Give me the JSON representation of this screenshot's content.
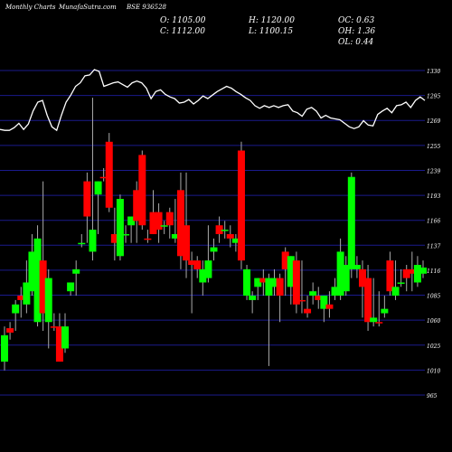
{
  "header": {
    "title": "Monthly Charts",
    "site": "MunafaSutra.com",
    "symbol": "BSE 936528"
  },
  "ohlc": {
    "open": "O: 1105.00",
    "high": "H: 1120.00",
    "oc": "OC: 0.63",
    "close": "C: 1112.00",
    "low": "L: 1100.15",
    "oh": "OH: 1.36",
    "ol": "OL: 0.44"
  },
  "colors": {
    "up": "#00ff00",
    "down": "#ff0000",
    "grid": "#1a1a8c",
    "wick": "#aaaaaa",
    "line": "#ffffff"
  },
  "chart_data": {
    "type": "candlestick",
    "title": "",
    "xlabel": "",
    "ylabel": "",
    "ylim": [
      967,
      1336
    ],
    "y_ticks": [
      "1330",
      "1295",
      "1269",
      "1255",
      "1239",
      "1193",
      "1166",
      "1137",
      "1116",
      "1085",
      "1060",
      "1025",
      "1010",
      "965"
    ],
    "candles": [
      {
        "o": 1005,
        "h": 1045,
        "l": 995,
        "c": 1035,
        "dir": "up"
      },
      {
        "o": 1038,
        "h": 1050,
        "l": 1030,
        "c": 1043,
        "dir": "down"
      },
      {
        "o": 1060,
        "h": 1075,
        "l": 1040,
        "c": 1070,
        "dir": "up"
      },
      {
        "o": 1075,
        "h": 1090,
        "l": 1055,
        "c": 1080,
        "dir": "down"
      },
      {
        "o": 1070,
        "h": 1120,
        "l": 1060,
        "c": 1095,
        "dir": "up"
      },
      {
        "o": 1085,
        "h": 1150,
        "l": 1080,
        "c": 1130,
        "dir": "up"
      },
      {
        "o": 1050,
        "h": 1160,
        "l": 1045,
        "c": 1145,
        "dir": "up"
      },
      {
        "o": 1060,
        "h": 1210,
        "l": 1040,
        "c": 1120,
        "dir": "down"
      },
      {
        "o": 1050,
        "h": 1110,
        "l": 1020,
        "c": 1100,
        "dir": "up"
      },
      {
        "o": 1045,
        "h": 1060,
        "l": 1040,
        "c": 1045,
        "dir": "down"
      },
      {
        "o": 1045,
        "h": 1060,
        "l": 1005,
        "c": 1005,
        "dir": "down"
      },
      {
        "o": 1045,
        "h": 1060,
        "l": 1015,
        "c": 1020,
        "dir": "up"
      },
      {
        "o": 1085,
        "h": 1095,
        "l": 1080,
        "c": 1095,
        "dir": "up"
      },
      {
        "o": 1105,
        "h": 1120,
        "l": 1080,
        "c": 1110,
        "dir": "up"
      },
      {
        "o": 1140,
        "h": 1150,
        "l": 1135,
        "c": 1140,
        "dir": "up"
      },
      {
        "o": 1210,
        "h": 1220,
        "l": 1140,
        "c": 1170,
        "dir": "down"
      },
      {
        "o": 1130,
        "h": 1305,
        "l": 1120,
        "c": 1155,
        "dir": "up"
      },
      {
        "o": 1195,
        "h": 1210,
        "l": 1150,
        "c": 1210,
        "dir": "up"
      },
      {
        "o": 1215,
        "h": 1225,
        "l": 1210,
        "c": 1215,
        "dir": "down"
      },
      {
        "o": 1255,
        "h": 1265,
        "l": 1175,
        "c": 1180,
        "dir": "down"
      },
      {
        "o": 1150,
        "h": 1180,
        "l": 1120,
        "c": 1140,
        "dir": "down"
      },
      {
        "o": 1125,
        "h": 1195,
        "l": 1120,
        "c": 1190,
        "dir": "up"
      },
      {
        "o": 1150,
        "h": 1160,
        "l": 1140,
        "c": 1150,
        "dir": "up"
      },
      {
        "o": 1160,
        "h": 1170,
        "l": 1140,
        "c": 1170,
        "dir": "up"
      },
      {
        "o": 1200,
        "h": 1210,
        "l": 1140,
        "c": 1165,
        "dir": "down"
      },
      {
        "o": 1240,
        "h": 1245,
        "l": 1155,
        "c": 1160,
        "dir": "down"
      },
      {
        "o": 1145,
        "h": 1155,
        "l": 1140,
        "c": 1145,
        "dir": "down"
      },
      {
        "o": 1175,
        "h": 1200,
        "l": 1150,
        "c": 1150,
        "dir": "down"
      },
      {
        "o": 1175,
        "h": 1185,
        "l": 1140,
        "c": 1155,
        "dir": "down"
      },
      {
        "o": 1160,
        "h": 1165,
        "l": 1150,
        "c": 1160,
        "dir": "up"
      },
      {
        "o": 1175,
        "h": 1180,
        "l": 1145,
        "c": 1160,
        "dir": "down"
      },
      {
        "o": 1150,
        "h": 1190,
        "l": 1140,
        "c": 1145,
        "dir": "up"
      },
      {
        "o": 1200,
        "h": 1220,
        "l": 1110,
        "c": 1125,
        "dir": "down"
      },
      {
        "o": 1160,
        "h": 1220,
        "l": 1100,
        "c": 1120,
        "dir": "down"
      },
      {
        "o": 1115,
        "h": 1130,
        "l": 1060,
        "c": 1120,
        "dir": "down"
      },
      {
        "o": 1110,
        "h": 1125,
        "l": 1100,
        "c": 1120,
        "dir": "down"
      },
      {
        "o": 1095,
        "h": 1120,
        "l": 1080,
        "c": 1110,
        "dir": "up"
      },
      {
        "o": 1100,
        "h": 1160,
        "l": 1095,
        "c": 1120,
        "dir": "up"
      },
      {
        "o": 1130,
        "h": 1145,
        "l": 1120,
        "c": 1135,
        "dir": "up"
      },
      {
        "o": 1160,
        "h": 1170,
        "l": 1140,
        "c": 1150,
        "dir": "down"
      },
      {
        "o": 1155,
        "h": 1165,
        "l": 1145,
        "c": 1155,
        "dir": "up"
      },
      {
        "o": 1145,
        "h": 1160,
        "l": 1135,
        "c": 1150,
        "dir": "down"
      },
      {
        "o": 1140,
        "h": 1150,
        "l": 1130,
        "c": 1145,
        "dir": "up"
      },
      {
        "o": 1245,
        "h": 1255,
        "l": 1110,
        "c": 1120,
        "dir": "down"
      },
      {
        "o": 1080,
        "h": 1115,
        "l": 1075,
        "c": 1110,
        "dir": "up"
      },
      {
        "o": 1075,
        "h": 1085,
        "l": 1060,
        "c": 1080,
        "dir": "up"
      },
      {
        "o": 1090,
        "h": 1100,
        "l": 1075,
        "c": 1100,
        "dir": "up"
      },
      {
        "o": 1095,
        "h": 1110,
        "l": 1080,
        "c": 1100,
        "dir": "down"
      },
      {
        "o": 1080,
        "h": 1105,
        "l": 1000,
        "c": 1100,
        "dir": "up"
      },
      {
        "o": 1090,
        "h": 1110,
        "l": 1080,
        "c": 1100,
        "dir": "up"
      },
      {
        "o": 1080,
        "h": 1105,
        "l": 1050,
        "c": 1100,
        "dir": "down"
      },
      {
        "o": 1130,
        "h": 1135,
        "l": 1080,
        "c": 1110,
        "dir": "down"
      },
      {
        "o": 1090,
        "h": 1125,
        "l": 1070,
        "c": 1125,
        "dir": "up"
      },
      {
        "o": 1120,
        "h": 1130,
        "l": 1060,
        "c": 1070,
        "dir": "down"
      },
      {
        "o": 1075,
        "h": 1120,
        "l": 1060,
        "c": 1075,
        "dir": "down"
      },
      {
        "o": 1060,
        "h": 1080,
        "l": 1055,
        "c": 1065,
        "dir": "down"
      },
      {
        "o": 1085,
        "h": 1095,
        "l": 1070,
        "c": 1080,
        "dir": "up"
      },
      {
        "o": 1080,
        "h": 1090,
        "l": 1065,
        "c": 1075,
        "dir": "down"
      },
      {
        "o": 1065,
        "h": 1080,
        "l": 1050,
        "c": 1080,
        "dir": "up"
      },
      {
        "o": 1070,
        "h": 1085,
        "l": 1055,
        "c": 1065,
        "dir": "down"
      },
      {
        "o": 1080,
        "h": 1100,
        "l": 1075,
        "c": 1090,
        "dir": "up"
      },
      {
        "o": 1080,
        "h": 1145,
        "l": 1075,
        "c": 1130,
        "dir": "up"
      },
      {
        "o": 1085,
        "h": 1125,
        "l": 1080,
        "c": 1115,
        "dir": "up"
      },
      {
        "o": 1110,
        "h": 1220,
        "l": 1100,
        "c": 1215,
        "dir": "up"
      },
      {
        "o": 1110,
        "h": 1125,
        "l": 1100,
        "c": 1115,
        "dir": "up"
      },
      {
        "o": 1090,
        "h": 1120,
        "l": 1055,
        "c": 1110,
        "dir": "down"
      },
      {
        "o": 1100,
        "h": 1115,
        "l": 1040,
        "c": 1050,
        "dir": "down"
      },
      {
        "o": 1050,
        "h": 1100,
        "l": 1045,
        "c": 1055,
        "dir": "up"
      },
      {
        "o": 1050,
        "h": 1085,
        "l": 1045,
        "c": 1050,
        "dir": "down"
      },
      {
        "o": 1060,
        "h": 1080,
        "l": 1055,
        "c": 1065,
        "dir": "up"
      },
      {
        "o": 1120,
        "h": 1130,
        "l": 1080,
        "c": 1085,
        "dir": "down"
      },
      {
        "o": 1080,
        "h": 1120,
        "l": 1075,
        "c": 1090,
        "dir": "up"
      },
      {
        "o": 1095,
        "h": 1110,
        "l": 1090,
        "c": 1095,
        "dir": "up"
      },
      {
        "o": 1100,
        "h": 1115,
        "l": 1085,
        "c": 1110,
        "dir": "down"
      },
      {
        "o": 1110,
        "h": 1130,
        "l": 1085,
        "c": 1105,
        "dir": "down"
      },
      {
        "o": 1095,
        "h": 1125,
        "l": 1090,
        "c": 1115,
        "dir": "up"
      },
      {
        "o": 1105,
        "h": 1120,
        "l": 1100,
        "c": 1112,
        "dir": "up"
      }
    ],
    "volume_line": [
      1269,
      1268,
      1268,
      1271,
      1276,
      1269,
      1275,
      1290,
      1300,
      1302,
      1285,
      1272,
      1268,
      1285,
      1300,
      1308,
      1318,
      1322,
      1330,
      1331,
      1337,
      1335,
      1318,
      1320,
      1322,
      1323,
      1320,
      1317,
      1322,
      1324,
      1322,
      1316,
      1304,
      1312,
      1314,
      1309,
      1306,
      1304,
      1299,
      1300,
      1303,
      1298,
      1302,
      1307,
      1304,
      1308,
      1312,
      1315,
      1318,
      1316,
      1312,
      1309,
      1305,
      1302,
      1296,
      1293,
      1296,
      1294,
      1296,
      1294,
      1296,
      1297,
      1290,
      1288,
      1284,
      1292,
      1294,
      1290,
      1282,
      1285,
      1282,
      1281,
      1280,
      1276,
      1272,
      1270,
      1272,
      1279,
      1274,
      1273,
      1286,
      1290,
      1293,
      1288,
      1296,
      1297,
      1300,
      1294,
      1302,
      1306,
      1302
    ]
  }
}
